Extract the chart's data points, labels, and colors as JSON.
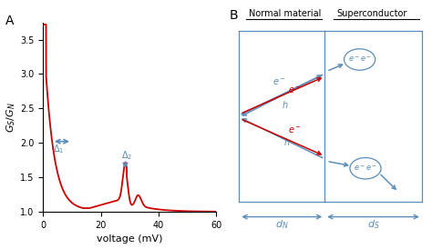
{
  "panel_A_label": "A",
  "panel_B_label": "B",
  "xlabel": "voltage (mV)",
  "ylabel": "G_S/G_N",
  "xlim": [
    0,
    60
  ],
  "ylim": [
    1,
    3.75
  ],
  "yticks": [
    1.0,
    1.5,
    2.0,
    2.5,
    3.0,
    3.5
  ],
  "xticks": [
    0,
    20,
    40,
    60
  ],
  "curve_color": "#cc0000",
  "annotation_color": "#5b8db8",
  "normal_material_label": "Normal material",
  "superconductor_label": "Superconductor",
  "dN_label": "d_N",
  "dS_label": "d_S",
  "background_color": "#ffffff"
}
